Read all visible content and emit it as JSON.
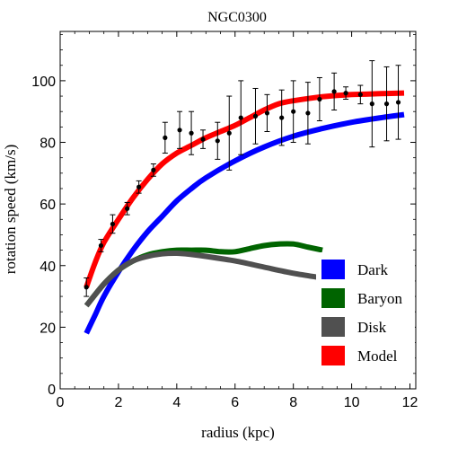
{
  "chart_data": {
    "type": "line",
    "title": "NGC0300",
    "xlabel": "radius (kpc)",
    "ylabel": "rotation speed (km/s)",
    "xlim": [
      0,
      12.2
    ],
    "ylim": [
      0,
      116
    ],
    "x_ticks": [
      0,
      2,
      4,
      6,
      8,
      10,
      12
    ],
    "y_ticks": [
      0,
      20,
      40,
      60,
      80,
      100
    ],
    "x_tick_labels": [
      "0",
      "2",
      "4",
      "6",
      "8",
      "10",
      "12"
    ],
    "y_tick_labels": [
      "0",
      "20",
      "40",
      "60",
      "80",
      "100"
    ],
    "grid": false,
    "legend_position": "bottom-right",
    "series": [
      {
        "name": "Dark",
        "color": "#0000ff",
        "x": [
          0.9,
          1.2,
          1.5,
          2.0,
          2.5,
          3.0,
          3.5,
          4.0,
          4.5,
          5.0,
          6.0,
          7.0,
          8.0,
          9.0,
          10.0,
          11.0,
          11.8
        ],
        "y": [
          18,
          24,
          30,
          38,
          45,
          51,
          56,
          61,
          65,
          68.5,
          74,
          78.5,
          82,
          84.5,
          86.5,
          88,
          89
        ]
      },
      {
        "name": "Baryon",
        "color": "#006400",
        "x": [
          0.9,
          1.5,
          2.0,
          2.5,
          3.0,
          3.5,
          4.0,
          4.5,
          5.0,
          5.5,
          6.0,
          6.5,
          7.0,
          7.5,
          8.0,
          8.5,
          9.0
        ],
        "y": [
          27,
          34,
          38.5,
          41.5,
          43.5,
          44.5,
          45,
          45,
          45,
          44.5,
          44.5,
          45.5,
          46.5,
          47,
          47,
          46,
          45
        ]
      },
      {
        "name": "Disk",
        "color": "#505050",
        "x": [
          0.9,
          1.5,
          2.0,
          2.5,
          3.0,
          3.5,
          4.0,
          4.5,
          5.0,
          6.0,
          7.0,
          8.0,
          9.0,
          10.0,
          11.0,
          11.8
        ],
        "y": [
          27,
          34,
          38.5,
          41.5,
          43,
          43.8,
          44,
          43.6,
          43,
          41.5,
          39.5,
          37.5,
          36,
          34.5,
          33.5,
          33
        ]
      },
      {
        "name": "Model",
        "color": "#ff0000",
        "x": [
          0.9,
          1.2,
          1.5,
          2.0,
          2.5,
          3.0,
          3.5,
          4.0,
          4.5,
          5.0,
          5.5,
          6.0,
          6.5,
          7.0,
          7.5,
          8.0,
          9.0,
          10.0,
          11.0,
          11.8
        ],
        "y": [
          33,
          41,
          47.5,
          55,
          62,
          68,
          73,
          76.5,
          79,
          81.5,
          83.5,
          85.5,
          88,
          90.5,
          92.5,
          93.5,
          94.8,
          95.5,
          95.8,
          96
        ]
      }
    ],
    "points": {
      "color": "#000000",
      "x": [
        0.9,
        1.4,
        1.8,
        2.3,
        2.7,
        3.2,
        3.6,
        4.1,
        4.5,
        4.9,
        5.4,
        5.8,
        6.2,
        6.7,
        7.1,
        7.6,
        8.0,
        8.5,
        8.9,
        9.4,
        9.8,
        10.3,
        10.7,
        11.2,
        11.6
      ],
      "y": [
        33,
        46.5,
        53.5,
        58.5,
        65.5,
        71,
        81.5,
        84,
        83,
        81,
        80.5,
        83,
        88,
        88.5,
        89.5,
        88,
        90,
        89.5,
        94,
        96.5,
        96,
        95.5,
        92.5,
        92.5,
        93
      ],
      "err": [
        3,
        2,
        3,
        2,
        2,
        2,
        5,
        6,
        7,
        3,
        6,
        12,
        12,
        9,
        6,
        9,
        10,
        10,
        7,
        6,
        2,
        3,
        14,
        12,
        12
      ]
    }
  }
}
